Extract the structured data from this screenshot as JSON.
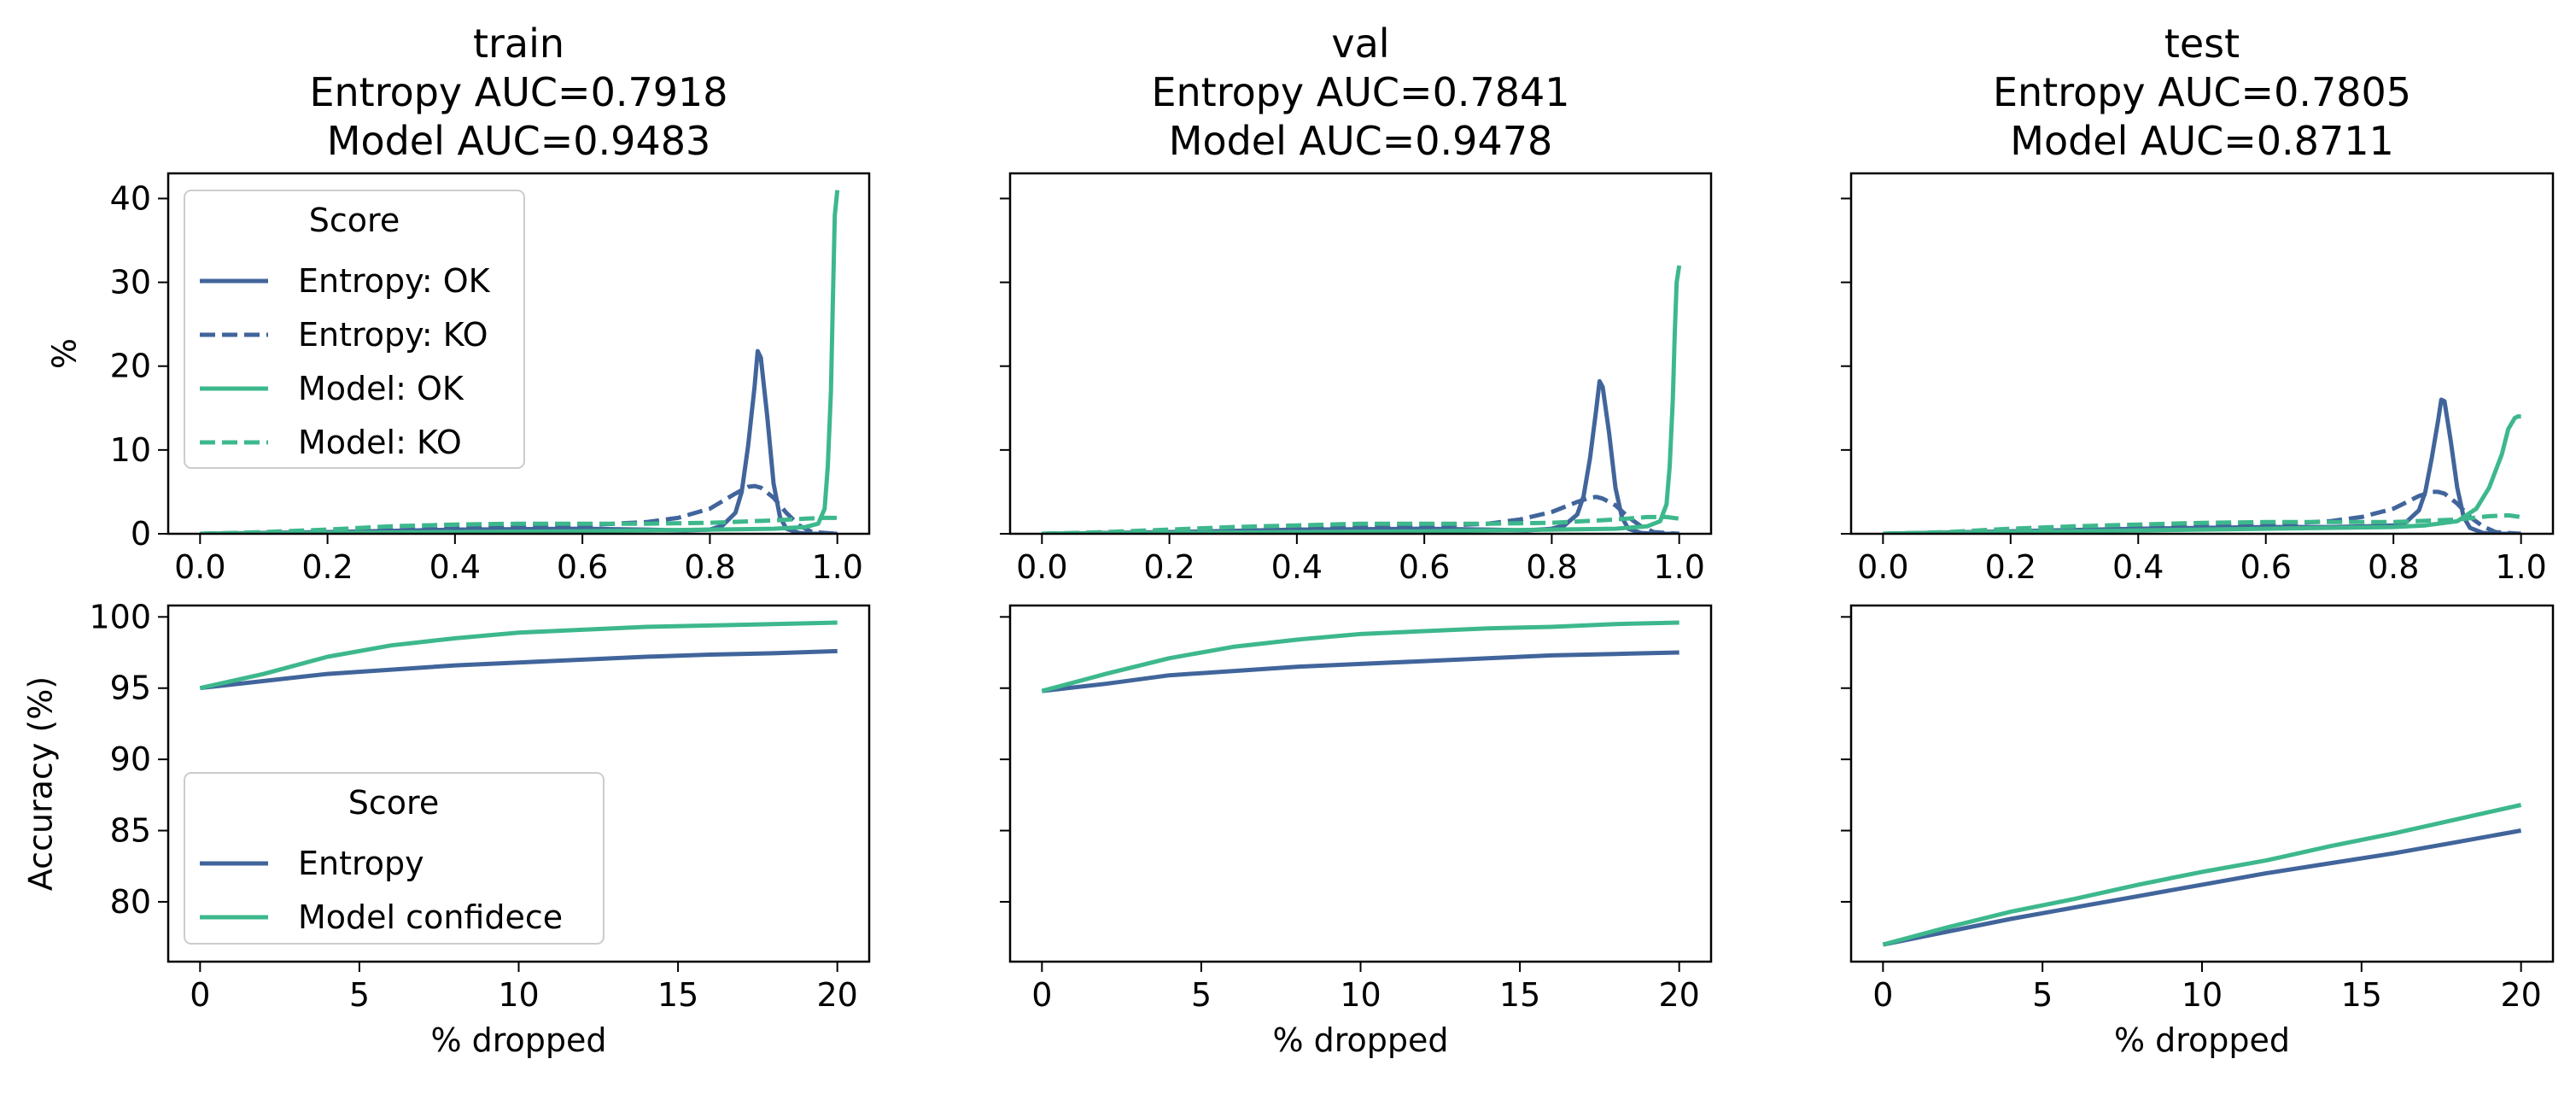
{
  "colors": {
    "entropy": "#41659b",
    "model": "#3db88c"
  },
  "legends": {
    "top": {
      "title": "Score",
      "entries": [
        "Entropy: OK",
        "Entropy: KO",
        "Model: OK",
        "Model: KO"
      ]
    },
    "bottom": {
      "title": "Score",
      "entries": [
        "Entropy",
        "Model confidece"
      ]
    }
  },
  "chart_data": [
    {
      "type": "line",
      "panel": "train-distribution",
      "title": [
        "train",
        "Entropy AUC=0.7918",
        "Model AUC=0.9483"
      ],
      "xlabel": "",
      "ylabel": "%",
      "xlim": [
        -0.05,
        1.05
      ],
      "ylim": [
        0,
        43
      ],
      "xticks": [
        0,
        0.2,
        0.4,
        0.6,
        0.8,
        1.0
      ],
      "xticklabels": [
        "0.0",
        "0.2",
        "0.4",
        "0.6",
        "0.8",
        "1.0"
      ],
      "yticks": [
        0,
        10,
        20,
        30,
        40
      ],
      "yticklabels": [
        "0",
        "10",
        "20",
        "30",
        "40"
      ],
      "series": [
        {
          "name": "Entropy: OK",
          "style": "solid",
          "color": "entropy",
          "x": [
            0,
            0.2,
            0.4,
            0.6,
            0.7,
            0.76,
            0.8,
            0.82,
            0.84,
            0.85,
            0.86,
            0.87,
            0.875,
            0.88,
            0.89,
            0.9,
            0.91,
            0.92,
            0.94,
            0.96,
            1.0
          ],
          "y": [
            0,
            0.2,
            0.5,
            0.6,
            0.5,
            0.4,
            0.5,
            1.0,
            2.5,
            5.0,
            10.5,
            17.5,
            21.8,
            21.0,
            14.0,
            6.0,
            2.0,
            0.6,
            0.1,
            0,
            0
          ]
        },
        {
          "name": "Entropy: KO",
          "style": "dashed",
          "color": "entropy",
          "x": [
            0,
            0.2,
            0.4,
            0.5,
            0.6,
            0.7,
            0.75,
            0.8,
            0.84,
            0.86,
            0.87,
            0.88,
            0.9,
            0.92,
            0.94,
            0.96,
            1.0
          ],
          "y": [
            0,
            0.2,
            0.6,
            0.8,
            1.0,
            1.4,
            1.9,
            3.0,
            4.8,
            5.6,
            5.7,
            5.5,
            4.3,
            2.5,
            1.0,
            0.2,
            0
          ]
        },
        {
          "name": "Model: OK",
          "style": "solid",
          "color": "model",
          "x": [
            0,
            0.2,
            0.4,
            0.6,
            0.8,
            0.9,
            0.95,
            0.97,
            0.98,
            0.985,
            0.99,
            0.993,
            0.996,
            1.0
          ],
          "y": [
            0,
            0.1,
            0.2,
            0.3,
            0.5,
            0.6,
            0.8,
            1.2,
            3.0,
            8.0,
            17.0,
            28.0,
            38.0,
            41.0
          ]
        },
        {
          "name": "Model: KO",
          "style": "dashed",
          "color": "model",
          "x": [
            0,
            0.1,
            0.2,
            0.3,
            0.4,
            0.5,
            0.6,
            0.7,
            0.8,
            0.9,
            0.95,
            0.98,
            1.0
          ],
          "y": [
            0,
            0.2,
            0.5,
            0.9,
            1.1,
            1.2,
            1.2,
            1.2,
            1.3,
            1.6,
            1.8,
            1.9,
            1.9
          ]
        }
      ]
    },
    {
      "type": "line",
      "panel": "val-distribution",
      "title": [
        "val",
        "Entropy AUC=0.7841",
        "Model AUC=0.9478"
      ],
      "xlabel": "",
      "ylabel": "",
      "xlim": [
        -0.05,
        1.05
      ],
      "ylim": [
        0,
        43
      ],
      "xticks": [
        0,
        0.2,
        0.4,
        0.6,
        0.8,
        1.0
      ],
      "xticklabels": [
        "0.0",
        "0.2",
        "0.4",
        "0.6",
        "0.8",
        "1.0"
      ],
      "yticks": [
        0,
        10,
        20,
        30,
        40
      ],
      "yticklabels": [
        "",
        "",
        "",
        "",
        ""
      ],
      "series": [
        {
          "name": "Entropy: OK",
          "style": "solid",
          "color": "entropy",
          "x": [
            0,
            0.2,
            0.4,
            0.6,
            0.7,
            0.76,
            0.8,
            0.82,
            0.84,
            0.85,
            0.86,
            0.87,
            0.875,
            0.88,
            0.89,
            0.9,
            0.91,
            0.92,
            0.94,
            0.96,
            1.0
          ],
          "y": [
            0,
            0.2,
            0.5,
            0.6,
            0.5,
            0.4,
            0.6,
            1.0,
            2.3,
            4.5,
            9.0,
            15.0,
            18.2,
            17.5,
            12.0,
            5.5,
            2.0,
            0.6,
            0.1,
            0,
            0
          ]
        },
        {
          "name": "Entropy: KO",
          "style": "dashed",
          "color": "entropy",
          "x": [
            0,
            0.2,
            0.4,
            0.5,
            0.6,
            0.7,
            0.75,
            0.8,
            0.84,
            0.86,
            0.87,
            0.88,
            0.9,
            0.92,
            0.94,
            0.96,
            1.0
          ],
          "y": [
            0,
            0.2,
            0.6,
            0.8,
            0.9,
            1.2,
            1.7,
            2.6,
            3.8,
            4.3,
            4.4,
            4.2,
            3.4,
            2.0,
            0.9,
            0.2,
            0
          ]
        },
        {
          "name": "Model: OK",
          "style": "solid",
          "color": "model",
          "x": [
            0,
            0.2,
            0.4,
            0.6,
            0.8,
            0.9,
            0.95,
            0.97,
            0.98,
            0.985,
            0.99,
            0.993,
            0.996,
            1.0
          ],
          "y": [
            0,
            0.1,
            0.2,
            0.3,
            0.5,
            0.6,
            0.9,
            1.5,
            3.5,
            8.0,
            16.0,
            24.0,
            30.0,
            32.0
          ]
        },
        {
          "name": "Model: KO",
          "style": "dashed",
          "color": "model",
          "x": [
            0,
            0.1,
            0.2,
            0.3,
            0.4,
            0.5,
            0.6,
            0.7,
            0.8,
            0.9,
            0.95,
            0.98,
            1.0
          ],
          "y": [
            0,
            0.2,
            0.5,
            0.8,
            1.0,
            1.2,
            1.2,
            1.2,
            1.3,
            1.7,
            2.0,
            2.0,
            1.8
          ]
        }
      ]
    },
    {
      "type": "line",
      "panel": "test-distribution",
      "title": [
        "test",
        "Entropy AUC=0.7805",
        "Model AUC=0.8711"
      ],
      "xlabel": "",
      "ylabel": "",
      "xlim": [
        -0.05,
        1.05
      ],
      "ylim": [
        0,
        43
      ],
      "xticks": [
        0,
        0.2,
        0.4,
        0.6,
        0.8,
        1.0
      ],
      "xticklabels": [
        "0.0",
        "0.2",
        "0.4",
        "0.6",
        "0.8",
        "1.0"
      ],
      "yticks": [
        0,
        10,
        20,
        30,
        40
      ],
      "yticklabels": [
        "",
        "",
        "",
        "",
        ""
      ],
      "series": [
        {
          "name": "Entropy: OK",
          "style": "solid",
          "color": "entropy",
          "x": [
            0,
            0.2,
            0.4,
            0.6,
            0.7,
            0.76,
            0.8,
            0.82,
            0.84,
            0.85,
            0.86,
            0.87,
            0.875,
            0.88,
            0.89,
            0.9,
            0.91,
            0.92,
            0.94,
            0.96,
            1.0
          ],
          "y": [
            0,
            0.3,
            0.6,
            0.8,
            0.8,
            0.9,
            1.0,
            1.4,
            2.8,
            5.0,
            9.0,
            13.5,
            16.0,
            15.8,
            11.0,
            5.5,
            2.0,
            0.7,
            0.1,
            0,
            0
          ]
        },
        {
          "name": "Entropy: KO",
          "style": "dashed",
          "color": "entropy",
          "x": [
            0,
            0.2,
            0.4,
            0.5,
            0.6,
            0.7,
            0.75,
            0.8,
            0.84,
            0.86,
            0.87,
            0.88,
            0.9,
            0.92,
            0.94,
            0.96,
            1.0
          ],
          "y": [
            0,
            0.3,
            0.7,
            0.9,
            1.1,
            1.5,
            2.0,
            3.0,
            4.5,
            5.0,
            5.0,
            4.8,
            3.6,
            2.0,
            0.9,
            0.2,
            0
          ]
        },
        {
          "name": "Model: OK",
          "style": "solid",
          "color": "model",
          "x": [
            0,
            0.2,
            0.4,
            0.6,
            0.8,
            0.85,
            0.9,
            0.93,
            0.95,
            0.97,
            0.98,
            0.99,
            0.995,
            1.0
          ],
          "y": [
            0,
            0.2,
            0.4,
            0.6,
            0.8,
            1.0,
            1.5,
            3.0,
            5.5,
            9.5,
            12.5,
            13.8,
            14.0,
            14.0
          ]
        },
        {
          "name": "Model: KO",
          "style": "dashed",
          "color": "model",
          "x": [
            0,
            0.1,
            0.2,
            0.3,
            0.4,
            0.5,
            0.6,
            0.7,
            0.8,
            0.9,
            0.95,
            0.98,
            1.0
          ],
          "y": [
            0,
            0.2,
            0.6,
            0.9,
            1.1,
            1.3,
            1.4,
            1.4,
            1.4,
            1.7,
            2.1,
            2.2,
            2.0
          ]
        }
      ]
    },
    {
      "type": "line",
      "panel": "train-accuracy",
      "title": [],
      "xlabel": "% dropped",
      "ylabel": "Accuracy (%)",
      "xlim": [
        -1,
        21
      ],
      "ylim": [
        75.8,
        100.8
      ],
      "xticks": [
        0,
        5,
        10,
        15,
        20
      ],
      "xticklabels": [
        "0",
        "5",
        "10",
        "15",
        "20"
      ],
      "yticks": [
        80,
        85,
        90,
        95,
        100
      ],
      "yticklabels": [
        "80",
        "85",
        "90",
        "95",
        "100"
      ],
      "series": [
        {
          "name": "Entropy",
          "style": "solid",
          "color": "entropy",
          "x": [
            0,
            2,
            4,
            6,
            8,
            10,
            12,
            14,
            16,
            18,
            20
          ],
          "y": [
            95.0,
            95.5,
            96.0,
            96.3,
            96.6,
            96.8,
            97.0,
            97.2,
            97.35,
            97.45,
            97.6
          ]
        },
        {
          "name": "Model confidece",
          "style": "solid",
          "color": "model",
          "x": [
            0,
            2,
            4,
            6,
            8,
            10,
            12,
            14,
            16,
            18,
            20
          ],
          "y": [
            95.0,
            96.0,
            97.2,
            98.0,
            98.5,
            98.9,
            99.1,
            99.3,
            99.4,
            99.5,
            99.6
          ]
        }
      ]
    },
    {
      "type": "line",
      "panel": "val-accuracy",
      "title": [],
      "xlabel": "% dropped",
      "ylabel": "",
      "xlim": [
        -1,
        21
      ],
      "ylim": [
        75.8,
        100.8
      ],
      "xticks": [
        0,
        5,
        10,
        15,
        20
      ],
      "xticklabels": [
        "0",
        "5",
        "10",
        "15",
        "20"
      ],
      "yticks": [
        80,
        85,
        90,
        95,
        100
      ],
      "yticklabels": [
        "",
        "",
        "",
        "",
        ""
      ],
      "series": [
        {
          "name": "Entropy",
          "style": "solid",
          "color": "entropy",
          "x": [
            0,
            2,
            4,
            6,
            8,
            10,
            12,
            14,
            16,
            18,
            20
          ],
          "y": [
            94.8,
            95.3,
            95.9,
            96.2,
            96.5,
            96.7,
            96.9,
            97.1,
            97.3,
            97.4,
            97.5
          ]
        },
        {
          "name": "Model confidece",
          "style": "solid",
          "color": "model",
          "x": [
            0,
            2,
            4,
            6,
            8,
            10,
            12,
            14,
            16,
            18,
            20
          ],
          "y": [
            94.8,
            96.0,
            97.1,
            97.9,
            98.4,
            98.8,
            99.0,
            99.2,
            99.3,
            99.5,
            99.6
          ]
        }
      ]
    },
    {
      "type": "line",
      "panel": "test-accuracy",
      "title": [],
      "xlabel": "% dropped",
      "ylabel": "",
      "xlim": [
        -1,
        21
      ],
      "ylim": [
        75.8,
        100.8
      ],
      "xticks": [
        0,
        5,
        10,
        15,
        20
      ],
      "xticklabels": [
        "0",
        "5",
        "10",
        "15",
        "20"
      ],
      "yticks": [
        80,
        85,
        90,
        95,
        100
      ],
      "yticklabels": [
        "",
        "",
        "",
        "",
        ""
      ],
      "series": [
        {
          "name": "Entropy",
          "style": "solid",
          "color": "entropy",
          "x": [
            0,
            2,
            4,
            6,
            8,
            10,
            12,
            14,
            16,
            18,
            20
          ],
          "y": [
            77.0,
            77.9,
            78.8,
            79.6,
            80.4,
            81.2,
            82.0,
            82.7,
            83.4,
            84.2,
            85.0
          ]
        },
        {
          "name": "Model confidece",
          "style": "solid",
          "color": "model",
          "x": [
            0,
            2,
            4,
            6,
            8,
            10,
            12,
            14,
            16,
            18,
            20
          ],
          "y": [
            77.0,
            78.2,
            79.3,
            80.2,
            81.2,
            82.1,
            82.9,
            83.9,
            84.8,
            85.8,
            86.8
          ]
        }
      ]
    }
  ]
}
